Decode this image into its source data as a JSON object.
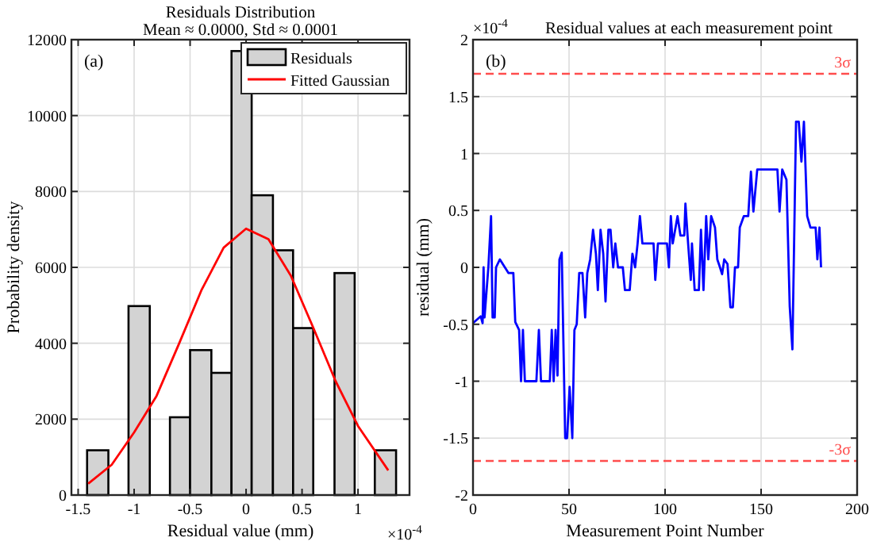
{
  "chart_data": [
    {
      "type": "histogram",
      "title": "Residuals Distribution",
      "subtitle": "Mean ≈ 0.0000, Std ≈ 0.0001",
      "xlabel": "Residual value (mm)",
      "ylabel": "Probability density",
      "annotations": [
        "(a)",
        "×10$^{-4}$"
      ],
      "bins": [
        -1.42,
        -1.23,
        -1.05,
        -0.86,
        -0.68,
        -0.5,
        -0.31,
        -0.13,
        0.05,
        0.24,
        0.42,
        0.6,
        0.79,
        0.97,
        1.15,
        1.34
      ],
      "series": [
        {
          "name": "Residuals",
          "color": "#d3d3d3",
          "values": [
            1180,
            0,
            4980,
            0,
            2050,
            3820,
            3220,
            11700,
            7900,
            6450,
            4400,
            0,
            5850,
            0,
            1180
          ]
        },
        {
          "name": "Fitted Gaussian",
          "type": "line",
          "color": "#ff0000",
          "x": [
            -1.41,
            -1.2,
            -1.0,
            -0.8,
            -0.6,
            -0.4,
            -0.2,
            0,
            0.2,
            0.4,
            0.6,
            0.8,
            1.0,
            1.27
          ],
          "values": [
            300,
            800,
            1650,
            2610,
            3980,
            5390,
            6520,
            7020,
            6740,
            5780,
            4410,
            3000,
            1820,
            650
          ]
        }
      ],
      "xlim": [
        -1.56,
        1.46
      ],
      "xticks": [
        -1.5,
        -1,
        -0.5,
        0,
        0.5,
        1
      ],
      "ylim": [
        0,
        12000
      ],
      "yticks": [
        0,
        2000,
        4000,
        6000,
        8000,
        10000,
        12000
      ],
      "grid": true,
      "legend": "top right"
    },
    {
      "type": "line",
      "title": "Residual values at each measurement point",
      "xlabel": "Measurement Point Number",
      "ylabel": "residual (mm)",
      "annotations": [
        "(b)",
        "×10$^{-4}$"
      ],
      "series": [
        {
          "color": "#0000ff",
          "x": [
            0,
            4,
            5,
            5.5,
            6,
            8,
            9.4,
            10.2,
            11.3,
            12,
            14,
            16.6,
            18.5,
            21,
            22,
            24,
            25,
            26,
            27,
            33,
            34.3,
            35.4,
            40,
            41,
            42,
            43,
            44,
            45,
            46.2,
            48,
            49,
            50.3,
            51.7,
            52.8,
            54,
            55.3,
            57,
            58.4,
            59.5,
            61,
            62.5,
            64,
            65,
            66.4,
            67.8,
            69,
            70.5,
            71.6,
            73,
            74.1,
            75.5,
            78,
            79.1,
            81.6,
            83,
            84.4,
            85.7,
            86.9,
            88.2,
            94,
            94.9,
            96.3,
            101,
            102,
            103,
            104,
            106.5,
            108,
            110,
            110.6,
            112,
            113.4,
            114,
            115.4,
            117.6,
            118.7,
            120,
            121.4,
            122.5,
            124,
            126,
            127.2,
            128.6,
            129.7,
            130.8,
            132.5,
            134,
            135.3,
            136.4,
            138,
            138.9,
            141,
            143.3,
            144.7,
            146,
            148,
            158.5,
            159.6,
            161,
            163.2,
            164.9,
            166.3,
            168.2,
            169.6,
            171,
            172.3,
            174,
            175.7,
            178.4,
            179.3,
            180.4,
            181.2
          ],
          "values": [
            -0.49,
            -0.43,
            -0.49,
            0,
            -0.44,
            0,
            0.45,
            -0.44,
            -0.44,
            0,
            0.07,
            0,
            -0.05,
            -0.05,
            -0.48,
            -0.55,
            -1.0,
            -0.55,
            -1.0,
            -1.0,
            -0.55,
            -1.0,
            -1.0,
            -0.55,
            -1.0,
            -0.55,
            -0.95,
            0.07,
            0.13,
            -1.5,
            -1.5,
            -1.05,
            -1.5,
            -0.55,
            -0.5,
            -0.05,
            -0.05,
            -0.44,
            -0.05,
            0.07,
            0.33,
            0.12,
            -0.2,
            0.33,
            0.12,
            -0.3,
            0.33,
            0.33,
            0,
            0.21,
            0,
            0,
            -0.2,
            -0.2,
            0.12,
            0,
            0.21,
            0.45,
            0.21,
            0.21,
            -0.11,
            0.21,
            0.21,
            0,
            0.45,
            0.21,
            0.45,
            0.28,
            0.28,
            0.56,
            0.21,
            -0.11,
            0.21,
            -0.2,
            -0.2,
            0.33,
            -0.2,
            0.45,
            0.07,
            0.45,
            0.35,
            0.07,
            0,
            -0.06,
            0.07,
            0.03,
            -0.35,
            -0.35,
            0,
            0,
            0.35,
            0.45,
            0.45,
            0.84,
            0.49,
            0.86,
            0.86,
            0.49,
            0.86,
            0.77,
            -0.34,
            -0.72,
            1.28,
            1.28,
            0.93,
            1.28,
            0.45,
            0.35,
            0.35,
            0.07,
            0.35,
            0
          ]
        }
      ],
      "xlim": [
        0,
        200
      ],
      "xticks": [
        0,
        50,
        100,
        150,
        200
      ],
      "ylim": [
        -2,
        2
      ],
      "yticks": [
        -2,
        -1.5,
        -1,
        -0.5,
        0,
        0.5,
        1,
        1.5,
        2
      ],
      "grid": true,
      "ref_lines": [
        {
          "axis": "y",
          "value": 1.7,
          "label": "3σ",
          "color": "#ff4d4d",
          "line_style": "dashed"
        },
        {
          "axis": "y",
          "value": -1.7,
          "label": "-3σ",
          "color": "#ff4d4d",
          "line_style": "dashed"
        }
      ]
    }
  ]
}
